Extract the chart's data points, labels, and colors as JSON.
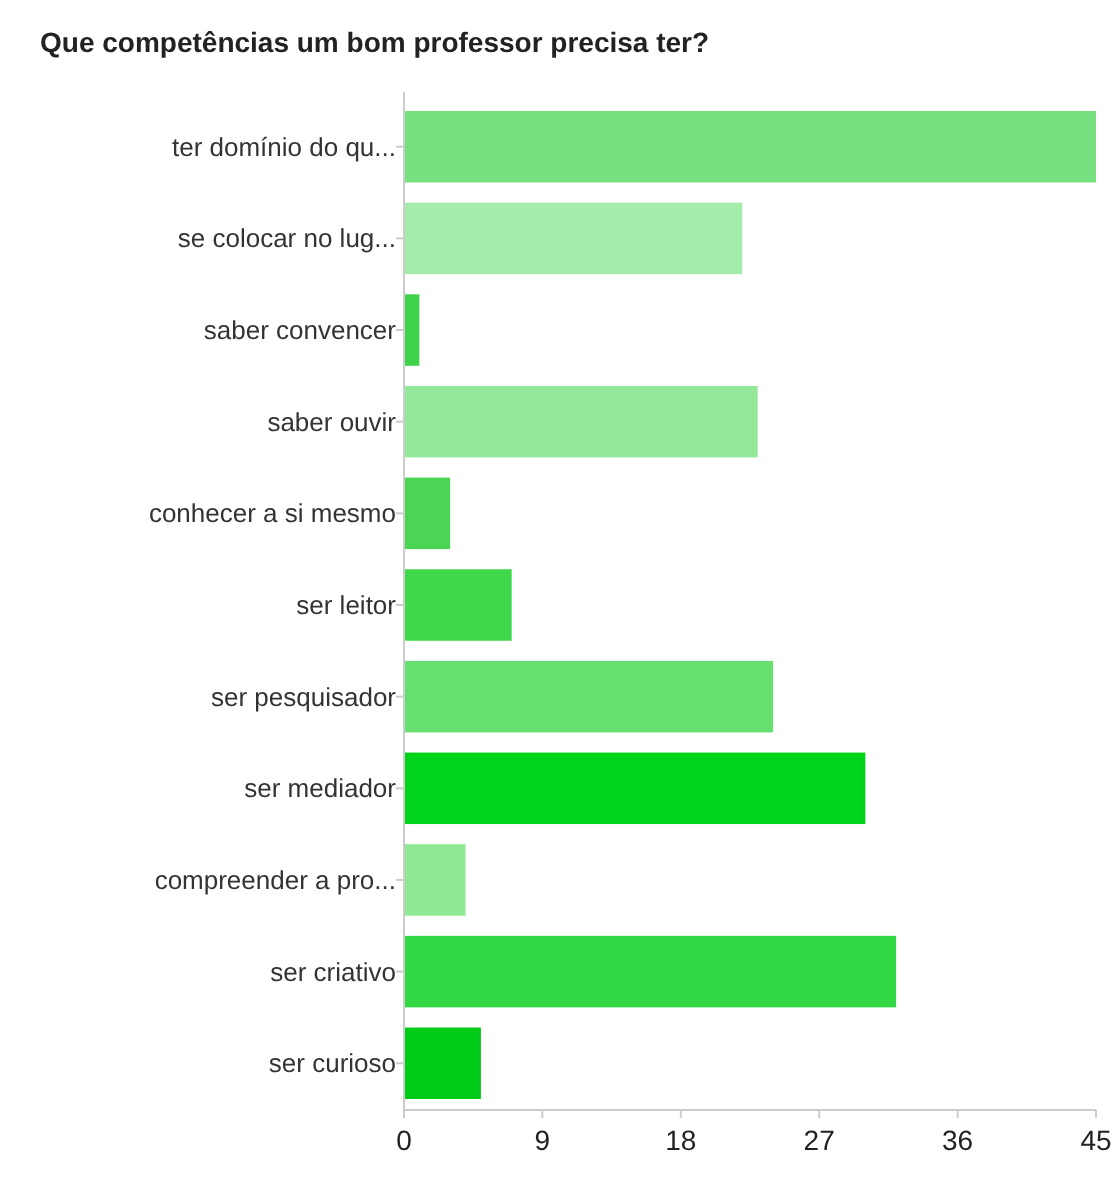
{
  "chart_data": {
    "type": "bar",
    "orientation": "horizontal",
    "title": "Que competências um bom professor precisa ter?",
    "categories": [
      "ter domínio do qu...",
      "se colocar no lug...",
      "saber convencer",
      "saber ouvir",
      "conhecer a si mesmo",
      "ser leitor",
      "ser pesquisador",
      "ser mediador",
      "compreender a pro...",
      "ser criativo",
      "ser curioso"
    ],
    "values": [
      45,
      22,
      1,
      23,
      3,
      7,
      24,
      30,
      4,
      32,
      5
    ],
    "colors": [
      "#77e07f",
      "#a3ecaa",
      "#3fd24a",
      "#93e89a",
      "#4ad555",
      "#3fd84a",
      "#66df70",
      "#00d41a",
      "#8ee894",
      "#33d944",
      "#00cc18"
    ],
    "xlim": [
      0,
      45
    ],
    "xticks": [
      0,
      9,
      18,
      27,
      36,
      45
    ],
    "grid": false
  }
}
